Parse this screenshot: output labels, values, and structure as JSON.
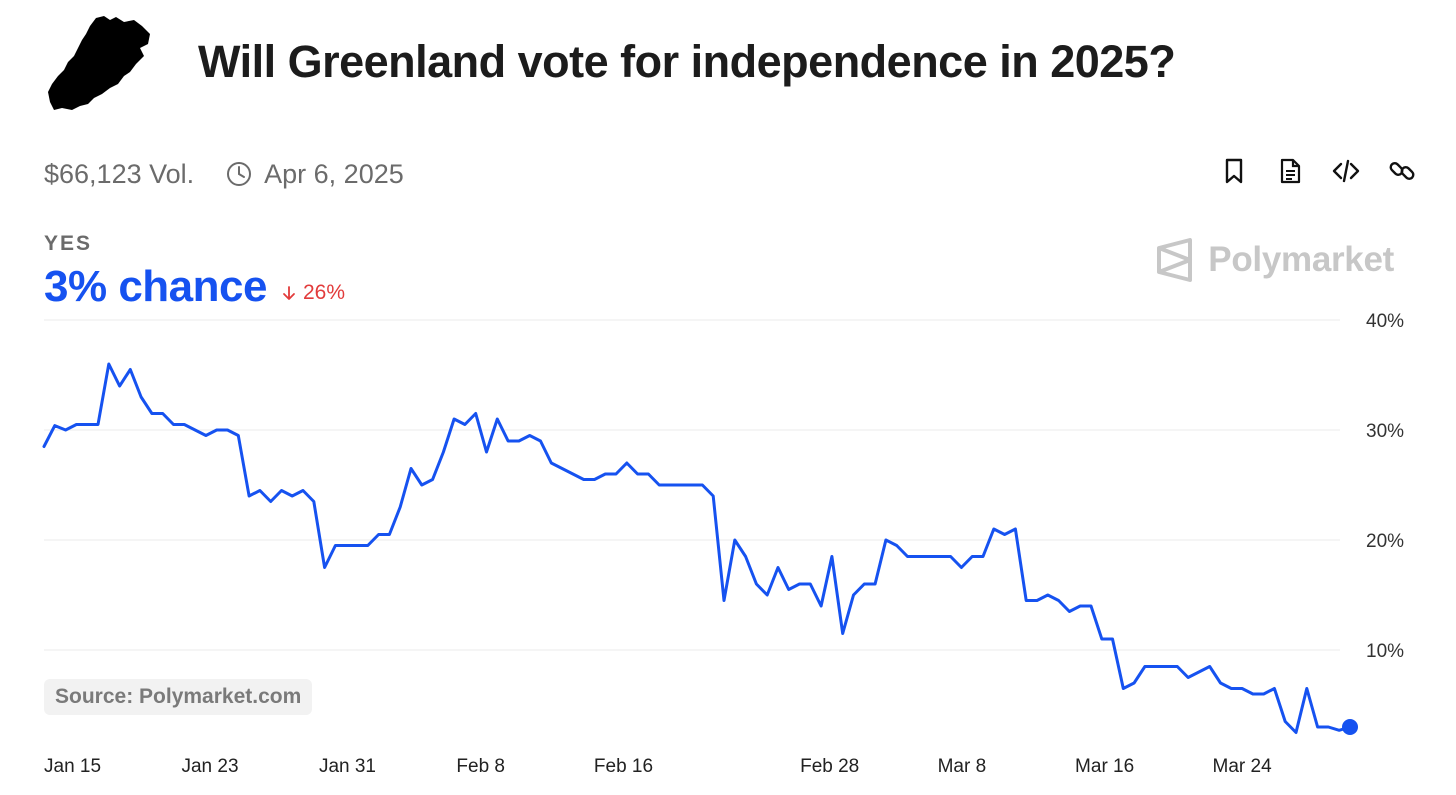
{
  "header": {
    "title": "Will Greenland vote for independence in 2025?",
    "volume": "$66,123 Vol.",
    "end_date": "Apr 6, 2025",
    "logo_icon": "greenland-map-icon",
    "actions": [
      "bookmark-icon",
      "document-icon",
      "code-icon",
      "link-icon"
    ]
  },
  "outcome": {
    "label": "YES",
    "chance": "3% chance",
    "change": "26%",
    "change_direction": "down",
    "chance_color": "#1652f0",
    "change_color": "#e23b3b"
  },
  "brand": {
    "name": "Polymarket",
    "color": "#c7c7c7"
  },
  "source": "Source: Polymarket.com",
  "chart_data": {
    "type": "line",
    "series_color": "#1652f0",
    "grid": true,
    "ylim": [
      0,
      40
    ],
    "y_ticks": [
      10,
      20,
      30,
      40
    ],
    "y_tick_labels": [
      "10%",
      "20%",
      "30%",
      "40%"
    ],
    "x_ticks": [
      "2025-01-15",
      "2025-01-23",
      "2025-01-31",
      "2025-02-08",
      "2025-02-16",
      "2025-02-28",
      "2025-03-08",
      "2025-03-16",
      "2025-03-24"
    ],
    "x_tick_labels": [
      "Jan 15",
      "Jan 23",
      "Jan 31",
      "Feb 8",
      "Feb 16",
      "Feb 28",
      "Mar 8",
      "Mar 16",
      "Mar 24"
    ],
    "xlim": [
      "2025-01-15",
      "2025-04-01"
    ],
    "series": [
      {
        "x": [
          "2025-01-15",
          "2025-01-16",
          "2025-01-16",
          "2025-01-16",
          "2025-01-17",
          "2025-01-19",
          "2025-01-20",
          "2025-01-20",
          "2025-01-21",
          "2025-01-21",
          "2025-01-21",
          "2025-01-22",
          "2025-01-23",
          "2025-01-23",
          "2025-01-24",
          "2025-01-25",
          "2025-01-26",
          "2025-01-26",
          "2025-01-27",
          "2025-01-27",
          "2025-01-28",
          "2025-01-28",
          "2025-01-29",
          "2025-01-29",
          "2025-01-29",
          "2025-01-30",
          "2025-01-30",
          "2025-01-31",
          "2025-01-31",
          "2025-01-31",
          "2025-02-01",
          "2025-02-02",
          "2025-02-02",
          "2025-02-04",
          "2025-02-04",
          "2025-02-05",
          "2025-02-05",
          "2025-02-06",
          "2025-02-06",
          "2025-02-07",
          "2025-02-07",
          "2025-02-08",
          "2025-02-08",
          "2025-02-09",
          "2025-02-09",
          "2025-02-10",
          "2025-02-10",
          "2025-02-10",
          "2025-02-11",
          "2025-02-11",
          "2025-02-12",
          "2025-02-12",
          "2025-02-13",
          "2025-02-14",
          "2025-02-15",
          "2025-02-16",
          "2025-02-17",
          "2025-02-18",
          "2025-02-18",
          "2025-02-19",
          "2025-02-20",
          "2025-02-21",
          "2025-02-22",
          "2025-02-24",
          "2025-02-25",
          "2025-02-25",
          "2025-02-25",
          "2025-02-26",
          "2025-02-26",
          "2025-02-27",
          "2025-02-27",
          "2025-02-28",
          "2025-02-28",
          "2025-02-28",
          "2025-03-01",
          "2025-03-01",
          "2025-03-02",
          "2025-03-02",
          "2025-03-02",
          "2025-03-03",
          "2025-03-03",
          "2025-03-04",
          "2025-03-05",
          "2025-03-06",
          "2025-03-07",
          "2025-03-08",
          "2025-03-09",
          "2025-03-09",
          "2025-03-10",
          "2025-03-10",
          "2025-03-11",
          "2025-03-11",
          "2025-03-12",
          "2025-03-12",
          "2025-03-13",
          "2025-03-13",
          "2025-03-14",
          "2025-03-14",
          "2025-03-15",
          "2025-03-16",
          "2025-03-17",
          "2025-03-17",
          "2025-03-18",
          "2025-03-18",
          "2025-03-20",
          "2025-03-21",
          "2025-03-22",
          "2025-03-22",
          "2025-03-23",
          "2025-03-23",
          "2025-03-24",
          "2025-03-24",
          "2025-03-25",
          "2025-03-25",
          "2025-03-26",
          "2025-03-27",
          "2025-03-28",
          "2025-03-28",
          "2025-03-29",
          "2025-03-30",
          "2025-03-31",
          "2025-04-01"
        ],
        "y": [
          28.5,
          30.4,
          30.0,
          30.5,
          30.5,
          30.5,
          36.0,
          34.0,
          35.5,
          33.0,
          31.5,
          31.5,
          30.5,
          30.5,
          30.0,
          29.5,
          30.0,
          30.0,
          29.5,
          24.0,
          24.5,
          23.5,
          24.5,
          24.0,
          24.5,
          23.5,
          17.5,
          19.5,
          19.5,
          19.5,
          19.5,
          20.5,
          20.5,
          23.0,
          26.5,
          25.0,
          25.5,
          28.0,
          31.0,
          30.5,
          31.5,
          28.0,
          31.0,
          29.0,
          29.0,
          29.5,
          29.0,
          27.0,
          26.5,
          26.0,
          25.5,
          25.5,
          26.0,
          26.0,
          27.0,
          26.0,
          26.0,
          25.0,
          25.0,
          25.0,
          25.0,
          25.0,
          24.0,
          14.5,
          20.0,
          18.5,
          16.0,
          15.0,
          17.5,
          15.5,
          16.0,
          16.0,
          14.0,
          18.5,
          11.5,
          15.0,
          16.0,
          16.0,
          20.0,
          19.5,
          18.5,
          18.5,
          18.5,
          18.5,
          18.5,
          17.5,
          18.5,
          18.5,
          21.0,
          20.5,
          21.0,
          14.5,
          14.5,
          15.0,
          14.5,
          13.5,
          14.0,
          14.0,
          11.0,
          11.0,
          6.5,
          7.0,
          8.5,
          8.5,
          8.5,
          8.5,
          7.5,
          8.0,
          8.5,
          7.0,
          6.5,
          6.5,
          6.0,
          6.0,
          6.5,
          3.5,
          2.5,
          6.5,
          3.0,
          3.0,
          2.7,
          3.0
        ]
      }
    ]
  }
}
